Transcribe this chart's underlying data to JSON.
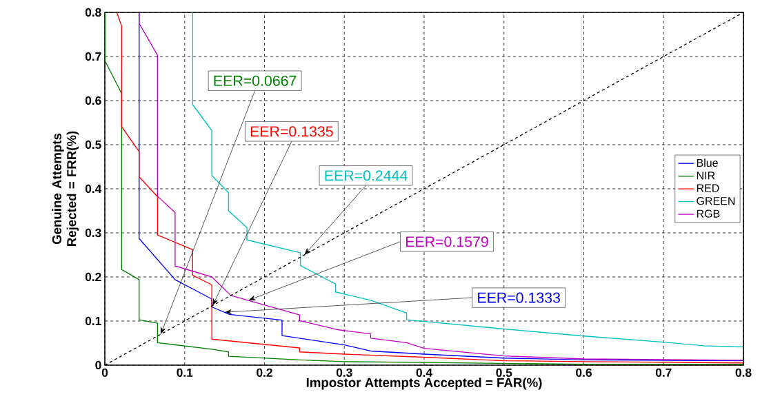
{
  "chart_data": {
    "type": "line",
    "xlabel": "Impostor Attempts Accepted = FAR(%)",
    "ylabel": "Genuine Attempts Rejected = FRR(%)",
    "xlim": [
      0,
      0.8
    ],
    "ylim": [
      0,
      0.8
    ],
    "xticks": [
      0,
      0.1,
      0.2,
      0.3,
      0.4,
      0.5,
      0.6,
      0.7,
      0.8
    ],
    "yticks": [
      0,
      0.1,
      0.2,
      0.3,
      0.4,
      0.5,
      0.6,
      0.7,
      0.8
    ],
    "grid": true,
    "legend": "right",
    "series": [
      {
        "name": "Blue",
        "color": "#0000ff",
        "x": [
          0.043,
          0.043,
          0.088,
          0.134,
          0.134,
          0.156,
          0.222,
          0.222,
          0.3,
          0.333,
          0.4,
          0.5,
          0.6,
          0.8
        ],
        "values": [
          0.8,
          0.287,
          0.194,
          0.15,
          0.132,
          0.115,
          0.102,
          0.067,
          0.046,
          0.032,
          0.025,
          0.016,
          0.012,
          0.01
        ]
      },
      {
        "name": "NIR",
        "color": "#008000",
        "x": [
          0,
          0,
          0.021,
          0.021,
          0.043,
          0.043,
          0.066,
          0.066,
          0.134,
          0.155,
          0.155,
          0.244,
          0.3,
          0.4,
          0.5,
          0.6,
          0.8
        ],
        "values": [
          0.8,
          0.691,
          0.616,
          0.217,
          0.194,
          0.103,
          0.095,
          0.051,
          0.036,
          0.03,
          0.02,
          0.012,
          0.008,
          0.006,
          0.004,
          0.002,
          0.002
        ]
      },
      {
        "name": "RED",
        "color": "#ff0000",
        "x": [
          0.015,
          0.021,
          0.021,
          0.043,
          0.043,
          0.066,
          0.066,
          0.11,
          0.11,
          0.134,
          0.134,
          0.244,
          0.244,
          0.3,
          0.4,
          0.5,
          0.6,
          0.8
        ],
        "values": [
          0.8,
          0.769,
          0.541,
          0.484,
          0.427,
          0.382,
          0.295,
          0.262,
          0.204,
          0.182,
          0.059,
          0.039,
          0.03,
          0.025,
          0.018,
          0.01,
          0.008,
          0.005
        ]
      },
      {
        "name": "GREEN",
        "color": "#00c0c0",
        "x": [
          0.11,
          0.11,
          0.134,
          0.134,
          0.155,
          0.155,
          0.178,
          0.178,
          0.245,
          0.245,
          0.289,
          0.289,
          0.333,
          0.378,
          0.378,
          0.5,
          0.6,
          0.7,
          0.75,
          0.8
        ],
        "values": [
          0.8,
          0.591,
          0.532,
          0.43,
          0.391,
          0.35,
          0.312,
          0.284,
          0.255,
          0.226,
          0.184,
          0.166,
          0.147,
          0.118,
          0.103,
          0.082,
          0.066,
          0.052,
          0.044,
          0.041
        ]
      },
      {
        "name": "RGB",
        "color": "#c000c0",
        "x": [
          0.043,
          0.043,
          0.066,
          0.066,
          0.088,
          0.088,
          0.134,
          0.158,
          0.244,
          0.244,
          0.293,
          0.333,
          0.333,
          0.378,
          0.4,
          0.5,
          0.6,
          0.8
        ],
        "values": [
          0.8,
          0.775,
          0.703,
          0.383,
          0.346,
          0.225,
          0.2,
          0.158,
          0.114,
          0.101,
          0.08,
          0.071,
          0.061,
          0.051,
          0.038,
          0.021,
          0.014,
          0.011
        ]
      },
      {
        "color": "#000000",
        "line_style": "dashed",
        "x": [
          0,
          0.8
        ],
        "values": [
          0,
          0.8
        ]
      }
    ],
    "annotations": [
      {
        "text": "EER=0.1333",
        "x": 0.15,
        "y": 0.12
      },
      {
        "text": "EER=0.0667",
        "x": 0.07,
        "y": 0.07
      },
      {
        "text": "EER=0.1335",
        "x": 0.135,
        "y": 0.135
      },
      {
        "text": "EER=0.2444",
        "x": 0.25,
        "y": 0.25
      },
      {
        "text": "EER=0.1579",
        "x": 0.18,
        "y": 0.147
      }
    ]
  }
}
